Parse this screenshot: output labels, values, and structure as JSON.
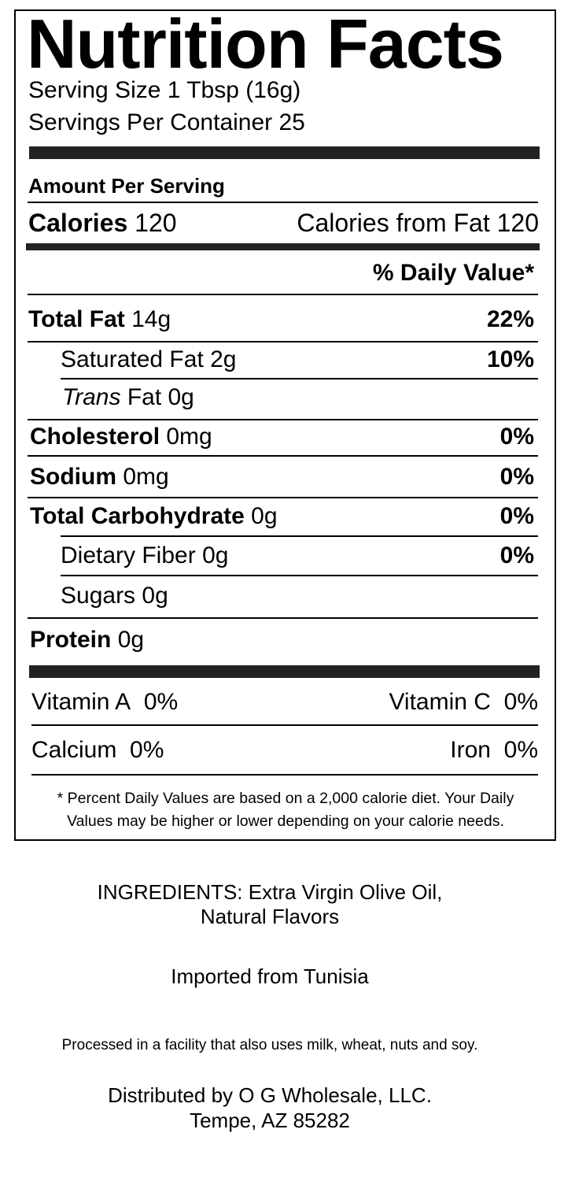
{
  "label": {
    "title": "Nutrition Facts",
    "serving_size": "Serving Size 1 Tbsp (16g)",
    "servings_per_container": "Servings Per Container 25",
    "amount_per_serving": "Amount Per Serving",
    "calories_label": "Calories",
    "calories_value": "120",
    "calories_from_fat": "Calories from Fat 120",
    "daily_value_header": "% Daily Value*",
    "nutrients": [
      {
        "label": "Total Fat",
        "amount": "14g",
        "dv": "22%"
      },
      {
        "label": "Saturated Fat",
        "amount": "2g",
        "dv": "10%"
      },
      {
        "label": "Trans",
        "amount": "Fat 0g",
        "dv": ""
      },
      {
        "label": "Cholesterol",
        "amount": "0mg",
        "dv": "0%"
      },
      {
        "label": "Sodium",
        "amount": "0mg",
        "dv": "0%"
      },
      {
        "label": "Total Carbohydrate",
        "amount": "0g",
        "dv": "0%"
      },
      {
        "label": "Dietary Fiber",
        "amount": "0g",
        "dv": "0%"
      },
      {
        "label": "Sugars",
        "amount": "0g",
        "dv": ""
      },
      {
        "label": "Protein",
        "amount": "0g",
        "dv": ""
      }
    ],
    "vitamins": [
      {
        "label": "Vitamin A",
        "dv": "0%"
      },
      {
        "label": "Vitamin C",
        "dv": "0%"
      },
      {
        "label": "Calcium",
        "dv": "0%"
      },
      {
        "label": "Iron",
        "dv": "0%"
      }
    ],
    "footnote_line1": "* Percent Daily Values are based on a 2,000 calorie diet. Your Daily",
    "footnote_line2": "Values may be higher or lower depending on your calorie needs."
  },
  "below": {
    "ingredients_line1": "INGREDIENTS: Extra Virgin Olive Oil,",
    "ingredients_line2": "Natural Flavors",
    "origin": "Imported from Tunisia",
    "allergen": "Processed in a facility that also uses milk, wheat, nuts and soy.",
    "distributor_line1": "Distributed by O G Wholesale, LLC.",
    "distributor_line2": "Tempe, AZ 85282"
  }
}
